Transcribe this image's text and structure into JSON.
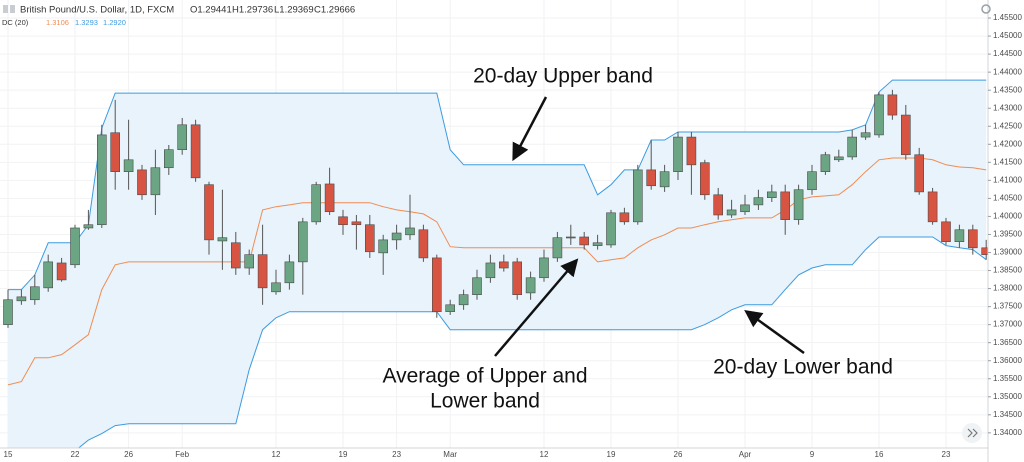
{
  "chart_data": {
    "type": "candlestick",
    "header": {
      "symbol": "British Pound/U.S. Dollar, 1D, FXCM",
      "ohlc": [
        "O1.29441",
        "H1.29736",
        "L1.29369",
        "C1.29666"
      ],
      "indicator": "DC (20)",
      "indicator_values": [
        "1.3106",
        "1.3293",
        "1.2920"
      ]
    },
    "annotations": [
      {
        "lines": [
          "20-day Upper band"
        ]
      },
      {
        "lines": [
          "Average of Upper and",
          "Lower band"
        ]
      },
      {
        "lines": [
          "20-day Lower band"
        ]
      }
    ],
    "categories": [
      "15",
      null,
      null,
      null,
      null,
      "22",
      null,
      null,
      null,
      "26",
      null,
      null,
      null,
      "Feb",
      null,
      null,
      null,
      null,
      null,
      null,
      "12",
      null,
      null,
      null,
      null,
      "19",
      null,
      null,
      null,
      "23",
      null,
      null,
      null,
      "Mar",
      null,
      null,
      null,
      null,
      null,
      null,
      "12",
      null,
      null,
      null,
      null,
      "19",
      null,
      null,
      null,
      null,
      "26",
      null,
      null,
      null,
      null,
      "Apr",
      null,
      null,
      null,
      null,
      "9",
      null,
      null,
      null,
      null,
      "16",
      null,
      null,
      null,
      null,
      "23",
      null,
      null,
      null
    ],
    "ohlc": [
      [
        1.37,
        1.3797,
        1.3691,
        1.3769
      ],
      [
        1.3766,
        1.3797,
        1.3755,
        1.3777
      ],
      [
        1.3769,
        1.3838,
        1.3755,
        1.3805
      ],
      [
        1.3802,
        1.3894,
        1.3791,
        1.3874
      ],
      [
        1.3871,
        1.3885,
        1.3819,
        1.3824
      ],
      [
        1.3866,
        1.3977,
        1.3857,
        1.3968
      ],
      [
        1.3968,
        1.4018,
        1.3963,
        1.3977
      ],
      [
        1.3977,
        1.4254,
        1.3968,
        1.4226
      ],
      [
        1.4232,
        1.4323,
        1.4074,
        1.4124
      ],
      [
        1.4124,
        1.4268,
        1.4074,
        1.4157
      ],
      [
        1.4129,
        1.4143,
        1.4046,
        1.406
      ],
      [
        1.406,
        1.4185,
        1.4004,
        1.4135
      ],
      [
        1.4135,
        1.4198,
        1.4115,
        1.4185
      ],
      [
        1.4185,
        1.4273,
        1.4171,
        1.4254
      ],
      [
        1.4254,
        1.4268,
        1.4096,
        1.4107
      ],
      [
        1.4088,
        1.4096,
        1.3894,
        1.3935
      ],
      [
        1.3932,
        1.4074,
        1.3852,
        1.3941
      ],
      [
        1.3927,
        1.3957,
        1.3838,
        1.3857
      ],
      [
        1.3857,
        1.3908,
        1.3838,
        1.3894
      ],
      [
        1.3894,
        1.3977,
        1.3755,
        1.3802
      ],
      [
        1.3791,
        1.3852,
        1.3783,
        1.3816
      ],
      [
        1.3816,
        1.3894,
        1.3797,
        1.3874
      ],
      [
        1.3874,
        1.3996,
        1.3783,
        1.3985
      ],
      [
        1.3985,
        1.4096,
        1.3977,
        1.4088
      ],
      [
        1.409,
        1.4135,
        1.4004,
        1.4013
      ],
      [
        1.3999,
        1.4018,
        1.3949,
        1.3977
      ],
      [
        1.3985,
        1.4004,
        1.3908,
        1.3977
      ],
      [
        1.3977,
        1.4004,
        1.3885,
        1.3902
      ],
      [
        1.3899,
        1.3949,
        1.3838,
        1.3935
      ],
      [
        1.3935,
        1.3977,
        1.3908,
        1.3954
      ],
      [
        1.3949,
        1.406,
        1.3935,
        1.3968
      ],
      [
        1.3963,
        1.3977,
        1.3874,
        1.3885
      ],
      [
        1.3885,
        1.3894,
        1.3719,
        1.3736
      ],
      [
        1.3736,
        1.3769,
        1.3727,
        1.3755
      ],
      [
        1.3755,
        1.3797,
        1.3741,
        1.3783
      ],
      [
        1.3783,
        1.3852,
        1.3769,
        1.383
      ],
      [
        1.383,
        1.3894,
        1.3816,
        1.3871
      ],
      [
        1.3874,
        1.3894,
        1.3847,
        1.3857
      ],
      [
        1.3874,
        1.3885,
        1.3769,
        1.3783
      ],
      [
        1.3788,
        1.3847,
        1.3769,
        1.383
      ],
      [
        1.383,
        1.3908,
        1.3819,
        1.3885
      ],
      [
        1.3885,
        1.3957,
        1.3874,
        1.3941
      ],
      [
        1.3943,
        1.3977,
        1.3921,
        1.3941
      ],
      [
        1.3943,
        1.3957,
        1.3908,
        1.3921
      ],
      [
        1.3919,
        1.3949,
        1.3908,
        1.3927
      ],
      [
        1.3921,
        1.4018,
        1.3913,
        1.401
      ],
      [
        1.401,
        1.4024,
        1.3977,
        1.3985
      ],
      [
        1.3985,
        1.4143,
        1.3977,
        1.4129
      ],
      [
        1.4129,
        1.4212,
        1.4074,
        1.4085
      ],
      [
        1.4082,
        1.4143,
        1.4068,
        1.4124
      ],
      [
        1.4124,
        1.4234,
        1.4101,
        1.422
      ],
      [
        1.422,
        1.4234,
        1.406,
        1.4143
      ],
      [
        1.4149,
        1.4157,
        1.4046,
        1.406
      ],
      [
        1.406,
        1.4079,
        1.3991,
        1.4004
      ],
      [
        1.4004,
        1.4046,
        1.3996,
        1.4018
      ],
      [
        1.4013,
        1.406,
        1.4004,
        1.4032
      ],
      [
        1.4032,
        1.4074,
        1.4018,
        1.4052
      ],
      [
        1.4052,
        1.4088,
        1.404,
        1.4068
      ],
      [
        1.4068,
        1.4088,
        1.3949,
        1.3991
      ],
      [
        1.3991,
        1.4088,
        1.3977,
        1.4074
      ],
      [
        1.4074,
        1.4143,
        1.406,
        1.4124
      ],
      [
        1.4124,
        1.4179,
        1.4115,
        1.4171
      ],
      [
        1.4157,
        1.4185,
        1.4151,
        1.4165
      ],
      [
        1.4165,
        1.424,
        1.4157,
        1.422
      ],
      [
        1.422,
        1.4254,
        1.4212,
        1.4232
      ],
      [
        1.4226,
        1.4345,
        1.4218,
        1.4337
      ],
      [
        1.4337,
        1.4351,
        1.4268,
        1.4281
      ],
      [
        1.4281,
        1.4309,
        1.4157,
        1.4171
      ],
      [
        1.4171,
        1.419,
        1.406,
        1.4068
      ],
      [
        1.4068,
        1.4079,
        1.3977,
        1.3985
      ],
      [
        1.3985,
        1.3996,
        1.3921,
        1.393
      ],
      [
        1.393,
        1.3977,
        1.3913,
        1.3963
      ],
      [
        1.3963,
        1.3977,
        1.3894,
        1.3913
      ],
      [
        1.3913,
        1.3935,
        1.388,
        1.3894
      ]
    ],
    "up_color": "#6ba583",
    "down_color": "#d75442",
    "upper": {
      "color": "#3d9be0",
      "values": [
        1.3797,
        1.3797,
        1.3838,
        1.3927,
        1.3927,
        1.3927,
        1.3977,
        1.4245,
        1.4342,
        1.4342,
        1.4342,
        1.4342,
        1.4342,
        1.4342,
        1.4342,
        1.4342,
        1.4342,
        1.4342,
        1.4342,
        1.4342,
        1.4342,
        1.4342,
        1.4342,
        1.4342,
        1.4342,
        1.4342,
        1.4342,
        1.4342,
        1.4342,
        1.4342,
        1.4342,
        1.4342,
        1.4342,
        1.4185,
        1.4143,
        1.4143,
        1.4143,
        1.4143,
        1.4143,
        1.4143,
        1.4143,
        1.4143,
        1.4143,
        1.4143,
        1.406,
        1.4088,
        1.4129,
        1.4129,
        1.4212,
        1.4212,
        1.4234,
        1.4234,
        1.4234,
        1.4234,
        1.4234,
        1.4234,
        1.4234,
        1.4234,
        1.4234,
        1.4234,
        1.4234,
        1.4234,
        1.4234,
        1.424,
        1.4254,
        1.4345,
        1.4378,
        1.4378,
        1.4378,
        1.4378,
        1.4378,
        1.4378,
        1.4378,
        1.4378
      ]
    },
    "basis": {
      "color": "#f08c53",
      "values": [
        1.3533,
        1.3542,
        1.3608,
        1.3608,
        1.3617,
        1.3644,
        1.3672,
        1.3797,
        1.3866,
        1.3874,
        1.3874,
        1.3874,
        1.3874,
        1.3874,
        1.3874,
        1.3874,
        1.3874,
        1.3874,
        1.3874,
        1.4018,
        1.4027,
        1.4032,
        1.4038,
        1.4038,
        1.4038,
        1.4038,
        1.4038,
        1.4038,
        1.4027,
        1.4018,
        1.4013,
        1.4007,
        1.3985,
        1.3916,
        1.3913,
        1.3913,
        1.3913,
        1.3913,
        1.3913,
        1.3913,
        1.3913,
        1.3913,
        1.3913,
        1.3913,
        1.3874,
        1.388,
        1.3885,
        1.3913,
        1.3935,
        1.3949,
        1.3968,
        1.3968,
        1.3977,
        1.3985,
        1.3991,
        1.3996,
        1.3996,
        1.3996,
        1.4018,
        1.4046,
        1.4054,
        1.4057,
        1.406,
        1.4088,
        1.4124,
        1.4157,
        1.4162,
        1.4162,
        1.4162,
        1.4157,
        1.4143,
        1.4137,
        1.4135,
        1.4129
      ]
    },
    "lower": {
      "color": "#3d9be0",
      "values": [
        1.333,
        1.333,
        1.333,
        1.333,
        1.333,
        1.335,
        1.338,
        1.3398,
        1.342,
        1.3425,
        1.3425,
        1.3425,
        1.3425,
        1.3425,
        1.3425,
        1.3425,
        1.3425,
        1.3425,
        1.3575,
        1.3686,
        1.3719,
        1.3736,
        1.3736,
        1.3736,
        1.3736,
        1.3736,
        1.3736,
        1.3736,
        1.3736,
        1.3736,
        1.3736,
        1.3736,
        1.3736,
        1.3686,
        1.3686,
        1.3686,
        1.3686,
        1.3686,
        1.3686,
        1.3686,
        1.3686,
        1.3686,
        1.3686,
        1.3686,
        1.3686,
        1.3686,
        1.3686,
        1.3686,
        1.3686,
        1.3686,
        1.3686,
        1.3686,
        1.37,
        1.3719,
        1.3741,
        1.3755,
        1.3755,
        1.3755,
        1.3797,
        1.3838,
        1.3857,
        1.3866,
        1.3866,
        1.3866,
        1.3908,
        1.3943,
        1.3943,
        1.3943,
        1.3943,
        1.3943,
        1.3919,
        1.3913,
        1.3908,
        1.388
      ]
    },
    "channel_fill": "#e8f3fb",
    "ylim": [
      1.3358,
      1.46
    ],
    "yticks": [
      {
        "value": 1.455,
        "label": "1.45500"
      },
      {
        "value": 1.45,
        "label": "1.45000"
      },
      {
        "value": 1.445,
        "label": "1.44500"
      },
      {
        "value": 1.44,
        "label": "1.44000"
      },
      {
        "value": 1.435,
        "label": "1.43500"
      },
      {
        "value": 1.43,
        "label": "1.43000"
      },
      {
        "value": 1.425,
        "label": "1.42500"
      },
      {
        "value": 1.42,
        "label": "1.42000"
      },
      {
        "value": 1.415,
        "label": "1.41500"
      },
      {
        "value": 1.41,
        "label": "1.41000"
      },
      {
        "value": 1.405,
        "label": "1.40500"
      },
      {
        "value": 1.4,
        "label": "1.40000"
      },
      {
        "value": 1.395,
        "label": "1.39500"
      },
      {
        "value": 1.39,
        "label": "1.39000"
      },
      {
        "value": 1.385,
        "label": "1.38500"
      },
      {
        "value": 1.38,
        "label": "1.38000"
      },
      {
        "value": 1.375,
        "label": "1.37500"
      },
      {
        "value": 1.37,
        "label": "1.37000"
      },
      {
        "value": 1.365,
        "label": "1.36500"
      },
      {
        "value": 1.36,
        "label": "1.36000"
      },
      {
        "value": 1.355,
        "label": "1.35500"
      },
      {
        "value": 1.35,
        "label": "1.35000"
      },
      {
        "value": 1.345,
        "label": "1.34500"
      },
      {
        "value": 1.34,
        "label": "1.34000"
      }
    ],
    "grid": true
  }
}
